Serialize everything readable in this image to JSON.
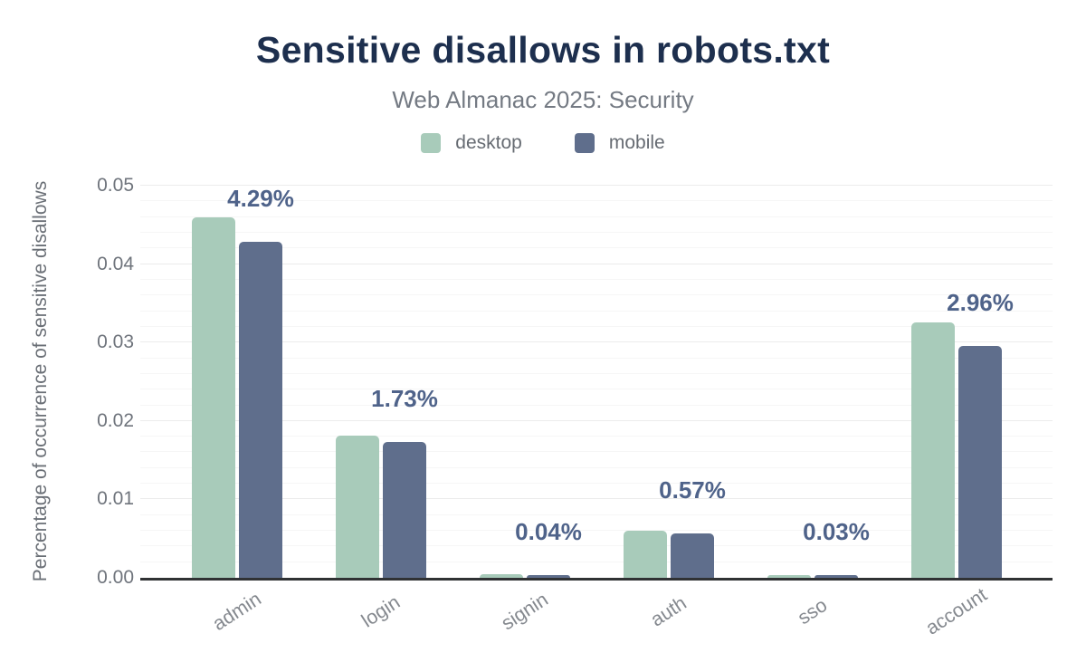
{
  "header": {
    "title": "Sensitive disallows in robots.txt",
    "subtitle": "Web Almanac 2025: Security"
  },
  "legend": {
    "items": [
      {
        "label": "desktop",
        "color": "#a8cbba"
      },
      {
        "label": "mobile",
        "color": "#5f6e8c"
      }
    ]
  },
  "colors": {
    "title": "#1d2f4e",
    "subtitle": "#747a83",
    "legend_text": "#666b72",
    "desktop_bar": "#a8cbba",
    "mobile_bar": "#5f6e8c",
    "value_label": "#4f638a",
    "y_tick_text": "#6f747c",
    "x_tick_text": "#85898f",
    "y_axis_title_text": "#6a6f76",
    "axis_line": "#303234",
    "grid_major": "#ececec",
    "grid_minor": "#f6f6f6",
    "background": "#ffffff"
  },
  "chart_data": {
    "type": "bar",
    "title": "Sensitive disallows in robots.txt",
    "subtitle": "Web Almanac 2025: Security",
    "categories": [
      "admin",
      "login",
      "signin",
      "auth",
      "sso",
      "account"
    ],
    "series": [
      {
        "name": "desktop",
        "color": "#a8cbba",
        "values": [
          0.046,
          0.0181,
          0.0005,
          0.006,
          0.0003,
          0.0326
        ]
      },
      {
        "name": "mobile",
        "color": "#5f6e8c",
        "values": [
          0.0429,
          0.0173,
          0.0004,
          0.0057,
          0.0003,
          0.0296
        ]
      }
    ],
    "value_labels": {
      "series": "mobile",
      "texts": [
        "4.29%",
        "1.73%",
        "0.04%",
        "0.57%",
        "0.03%",
        "2.96%"
      ]
    },
    "xlabel": "",
    "ylabel": "Percentage of occurrence of sensitive disallows",
    "ylim": [
      0,
      0.05
    ],
    "yticks": [
      0.05,
      0.04,
      0.03,
      0.02,
      0.01,
      0.0
    ],
    "ytick_labels": [
      "0.05",
      "0.04",
      "0.03",
      "0.02",
      "0.01",
      "0.00"
    ],
    "grid": {
      "major_step": 0.01,
      "minor_step": 0.002,
      "minor_visible": true
    },
    "legend_position": "top-center",
    "bar_corner_radius": 5
  }
}
